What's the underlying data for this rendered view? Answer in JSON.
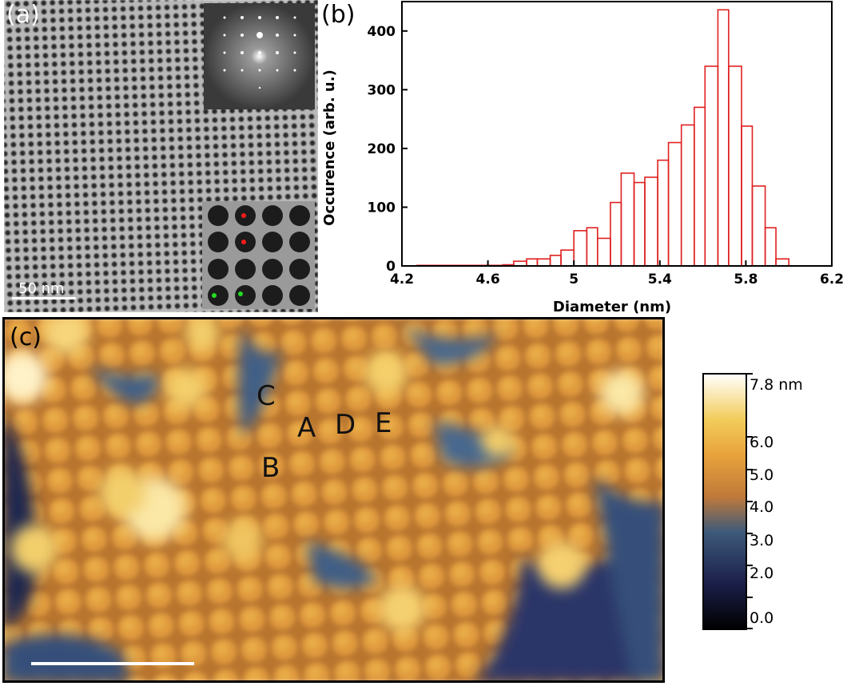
{
  "panels": {
    "a": {
      "letter": "(a)",
      "scalebar_label": "50 nm",
      "insets": [
        "fft-inset",
        "zoom-inset"
      ],
      "markers": [
        {
          "color": "#ff1a1a",
          "kind": "red-dot"
        },
        {
          "color": "#ff1a1a",
          "kind": "red-dot"
        },
        {
          "color": "#22dd22",
          "kind": "green-dot"
        },
        {
          "color": "#22dd22",
          "kind": "green-dot"
        }
      ]
    },
    "b": {
      "letter": "(b)"
    },
    "c": {
      "letter": "(c)",
      "site_labels": [
        "C",
        "A",
        "D",
        "E",
        "B"
      ],
      "scalebar_color": "#ffffff"
    }
  },
  "colorbar": {
    "unit_label": "7.8 nm",
    "ticks": [
      "6.0",
      "5.0",
      "4.0",
      "3.0",
      "2.0",
      "0.0"
    ],
    "colors": [
      "#000000",
      "#1b1f4a",
      "#3d5a7a",
      "#c07a3a",
      "#e8a23c",
      "#f2cc5a",
      "#ffffff"
    ]
  },
  "chart_data": {
    "type": "bar",
    "xlabel": "Diameter (nm)",
    "ylabel": "Occurence (arb. u.)",
    "xlim": [
      4.2,
      6.2
    ],
    "ylim": [
      0,
      450
    ],
    "xticks": [
      "4.2",
      "4.6",
      "5",
      "5.4",
      "5.8",
      "6.2"
    ],
    "yticks": [
      "0",
      "100",
      "200",
      "300",
      "400"
    ],
    "bar_color": "#e02020",
    "bins": [
      {
        "x0": 4.27,
        "x1": 4.67,
        "value": 1
      },
      {
        "x0": 4.67,
        "x1": 4.72,
        "value": 2
      },
      {
        "x0": 4.72,
        "x1": 4.78,
        "value": 8
      },
      {
        "x0": 4.78,
        "x1": 4.83,
        "value": 12
      },
      {
        "x0": 4.83,
        "x1": 4.89,
        "value": 12
      },
      {
        "x0": 4.89,
        "x1": 4.94,
        "value": 18
      },
      {
        "x0": 4.94,
        "x1": 5.0,
        "value": 27
      },
      {
        "x0": 5.0,
        "x1": 5.06,
        "value": 60
      },
      {
        "x0": 5.06,
        "x1": 5.11,
        "value": 65
      },
      {
        "x0": 5.11,
        "x1": 5.17,
        "value": 47
      },
      {
        "x0": 5.17,
        "x1": 5.22,
        "value": 108
      },
      {
        "x0": 5.22,
        "x1": 5.28,
        "value": 158
      },
      {
        "x0": 5.28,
        "x1": 5.33,
        "value": 142
      },
      {
        "x0": 5.33,
        "x1": 5.39,
        "value": 151
      },
      {
        "x0": 5.39,
        "x1": 5.44,
        "value": 180
      },
      {
        "x0": 5.44,
        "x1": 5.5,
        "value": 210
      },
      {
        "x0": 5.5,
        "x1": 5.56,
        "value": 240
      },
      {
        "x0": 5.56,
        "x1": 5.61,
        "value": 270
      },
      {
        "x0": 5.61,
        "x1": 5.67,
        "value": 340
      },
      {
        "x0": 5.67,
        "x1": 5.72,
        "value": 436
      },
      {
        "x0": 5.72,
        "x1": 5.78,
        "value": 340
      },
      {
        "x0": 5.78,
        "x1": 5.83,
        "value": 238
      },
      {
        "x0": 5.83,
        "x1": 5.89,
        "value": 136
      },
      {
        "x0": 5.89,
        "x1": 5.94,
        "value": 65
      },
      {
        "x0": 5.94,
        "x1": 6.0,
        "value": 12
      }
    ]
  }
}
